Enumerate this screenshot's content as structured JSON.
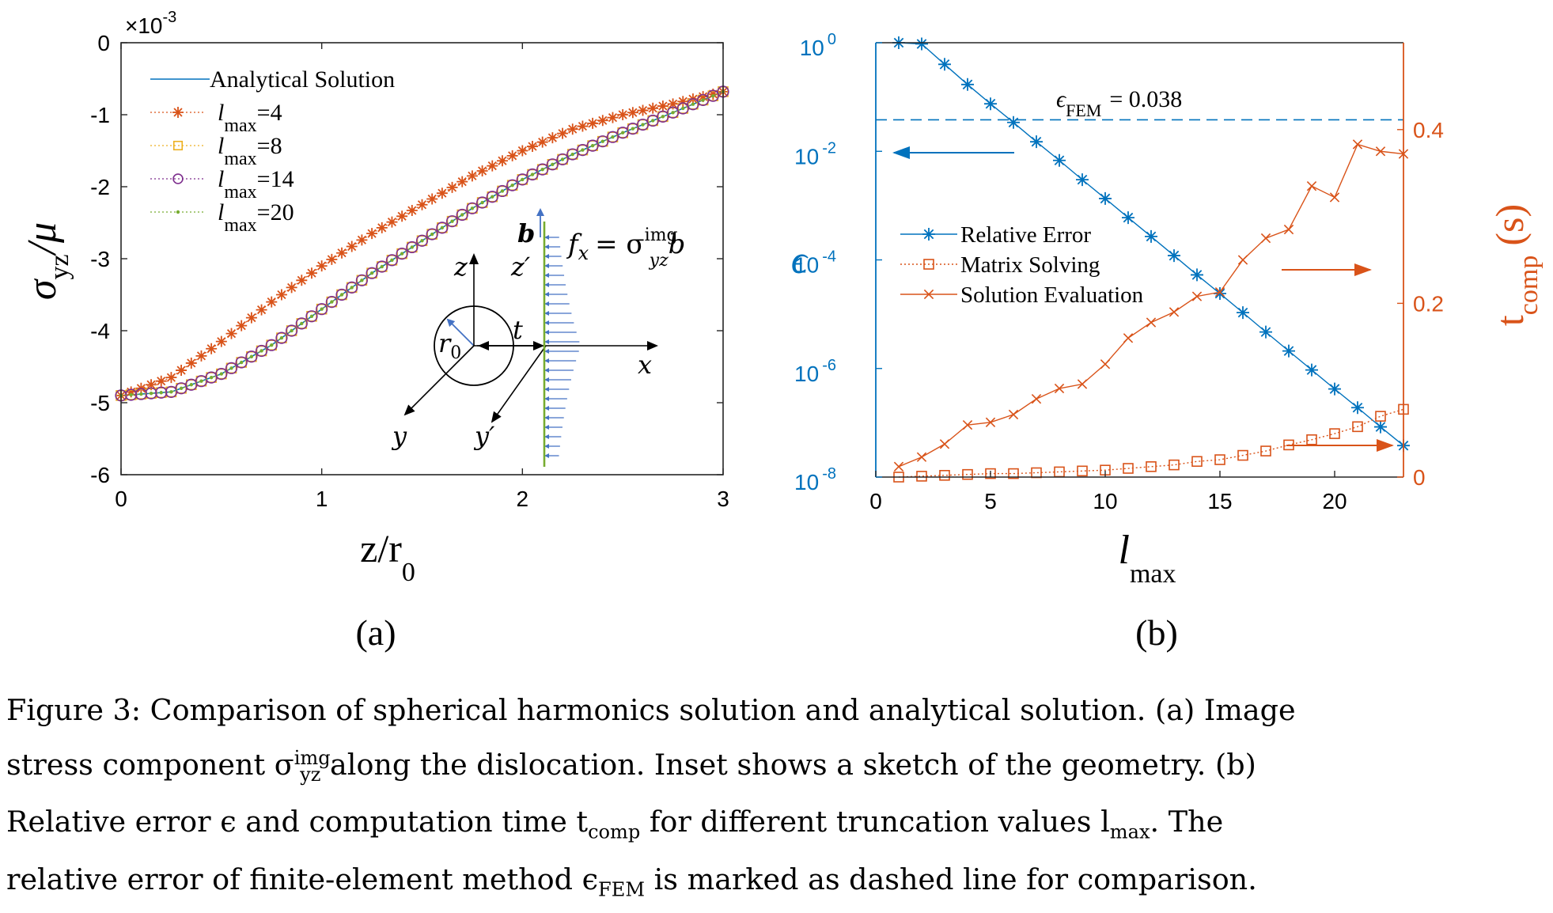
{
  "chart_data": [
    {
      "type": "line",
      "panel_label": "(a)",
      "xlabel_main": "z/r",
      "xlabel_sub": "0",
      "ylabel_main": "σ",
      "ylabel_sub": "yz",
      "ylabel_tail": "/μ",
      "y_exponent": "×10",
      "y_exponent_power": "-3",
      "xlim": [
        0,
        3
      ],
      "ylim": [
        -6,
        0
      ],
      "x_ticks": [
        "0",
        "1",
        "2",
        "3"
      ],
      "y_ticks": [
        "0",
        "-1",
        "-2",
        "-3",
        "-4",
        "-5",
        "-6"
      ],
      "grid": false,
      "legend_position": "top-left",
      "series": [
        {
          "name": "Analytical Solution",
          "color": "#0072BD",
          "marker": "none",
          "x": [
            0,
            0.25,
            0.5,
            0.75,
            1.0,
            1.25,
            1.5,
            1.75,
            2.0,
            2.25,
            2.5,
            2.75,
            3.0
          ],
          "y": [
            -4.9,
            -4.85,
            -4.6,
            -4.2,
            -3.7,
            -3.2,
            -2.75,
            -2.3,
            -1.9,
            -1.55,
            -1.25,
            -0.97,
            -0.68
          ]
        },
        {
          "name": "=4",
          "name_prefix": "l",
          "name_sub": "max",
          "color": "#D95319",
          "marker": "star",
          "x": [
            0,
            0.25,
            0.5,
            0.75,
            1.0,
            1.25,
            1.5,
            1.75,
            2.0,
            2.25,
            2.5,
            2.75,
            3.0
          ],
          "y": [
            -4.9,
            -4.65,
            -4.15,
            -3.6,
            -3.1,
            -2.65,
            -2.25,
            -1.85,
            -1.5,
            -1.2,
            -1.0,
            -0.85,
            -0.68
          ]
        },
        {
          "name": "=8",
          "name_prefix": "l",
          "name_sub": "max",
          "color": "#EDB120",
          "marker": "square",
          "x": [
            0,
            0.25,
            0.5,
            0.75,
            1.0,
            1.25,
            1.5,
            1.75,
            2.0,
            2.25,
            2.5,
            2.75,
            3.0
          ],
          "y": [
            -4.9,
            -4.85,
            -4.6,
            -4.2,
            -3.7,
            -3.2,
            -2.75,
            -2.3,
            -1.9,
            -1.55,
            -1.25,
            -0.97,
            -0.68
          ]
        },
        {
          "name": "=14",
          "name_prefix": "l",
          "name_sub": "max",
          "color": "#7E2F8E",
          "marker": "circle",
          "x": [
            0,
            0.25,
            0.5,
            0.75,
            1.0,
            1.25,
            1.5,
            1.75,
            2.0,
            2.25,
            2.5,
            2.75,
            3.0
          ],
          "y": [
            -4.9,
            -4.85,
            -4.6,
            -4.2,
            -3.7,
            -3.2,
            -2.75,
            -2.3,
            -1.9,
            -1.55,
            -1.25,
            -0.97,
            -0.68
          ]
        },
        {
          "name": "=20",
          "name_prefix": "l",
          "name_sub": "max",
          "color": "#77AC30",
          "marker": "dot",
          "x": [
            0,
            0.25,
            0.5,
            0.75,
            1.0,
            1.25,
            1.5,
            1.75,
            2.0,
            2.25,
            2.5,
            2.75,
            3.0
          ],
          "y": [
            -4.9,
            -4.85,
            -4.6,
            -4.2,
            -3.7,
            -3.2,
            -2.75,
            -2.3,
            -1.9,
            -1.55,
            -1.25,
            -0.97,
            -0.68
          ]
        }
      ],
      "inset": {
        "labels": {
          "z": "z",
          "z_prime": "z′",
          "x": "x",
          "y": "y",
          "y_prime": "y′",
          "r0": "r",
          "r0_sub": "0",
          "t": "t",
          "b": "b"
        },
        "force_label": {
          "f": "f",
          "f_sub": "x",
          "eq": "= σ",
          "sup": "img",
          "sub": "yz",
          "b": "b"
        }
      }
    },
    {
      "type": "line",
      "panel_label": "(b)",
      "xlabel_main": "l",
      "xlabel_sub": "max",
      "ylabel_left": "ϵ",
      "ylabel_right_main": "t",
      "ylabel_right_sub": "comp",
      "ylabel_right_tail": "(s)",
      "xlim": [
        0,
        23
      ],
      "ylim_left_log10": [
        -8,
        0
      ],
      "ylim_right": [
        0,
        0.5
      ],
      "x_ticks": [
        "0",
        "5",
        "10",
        "15",
        "20"
      ],
      "y_ticks_left": [
        {
          "base": "10",
          "exp": "0"
        },
        {
          "base": "10",
          "exp": "-2"
        },
        {
          "base": "10",
          "exp": "-4"
        },
        {
          "base": "10",
          "exp": "-6"
        },
        {
          "base": "10",
          "exp": "-8"
        }
      ],
      "y_ticks_right": [
        "0",
        "0.2",
        "0.4"
      ],
      "left_axis_color": "#0072BD",
      "right_axis_color": "#D95319",
      "legend_position": "center-left",
      "reference_line": {
        "label_symbol": "ϵ",
        "label_sub": "FEM",
        "label_value": "= 0.038",
        "value": 0.038
      },
      "series": [
        {
          "name": "Relative Error",
          "axis": "left",
          "color": "#0072BD",
          "marker": "star",
          "x": [
            1,
            2,
            3,
            4,
            5,
            6,
            7,
            8,
            9,
            10,
            11,
            12,
            13,
            14,
            15,
            16,
            17,
            18,
            19,
            20,
            21,
            22,
            23
          ],
          "y": [
            1.0,
            0.95,
            0.4,
            0.17,
            0.075,
            0.034,
            0.015,
            0.0068,
            0.003,
            0.00135,
            0.0006,
            0.00027,
            0.00012,
            5.3e-05,
            2.4e-05,
            1.07e-05,
            4.7e-06,
            2.1e-06,
            9.4e-07,
            4.2e-07,
            1.9e-07,
            8.4e-08,
            3.8e-08
          ]
        },
        {
          "name": "Matrix Solving",
          "axis": "right",
          "color": "#D95319",
          "marker": "square",
          "x": [
            1,
            2,
            3,
            4,
            5,
            6,
            7,
            8,
            9,
            10,
            11,
            12,
            13,
            14,
            15,
            16,
            17,
            18,
            19,
            20,
            21,
            22,
            23
          ],
          "y": [
            0.0,
            0.001,
            0.002,
            0.003,
            0.004,
            0.004,
            0.005,
            0.006,
            0.007,
            0.008,
            0.01,
            0.012,
            0.014,
            0.018,
            0.02,
            0.025,
            0.03,
            0.037,
            0.043,
            0.05,
            0.058,
            0.07,
            0.078
          ]
        },
        {
          "name": "Solution Evaluation",
          "axis": "right",
          "color": "#D95319",
          "marker": "x",
          "x": [
            1,
            2,
            3,
            4,
            5,
            6,
            7,
            8,
            9,
            10,
            11,
            12,
            13,
            14,
            15,
            16,
            17,
            18,
            19,
            20,
            21,
            22,
            23
          ],
          "y": [
            0.012,
            0.023,
            0.038,
            0.06,
            0.063,
            0.072,
            0.09,
            0.102,
            0.107,
            0.13,
            0.16,
            0.178,
            0.19,
            0.208,
            0.213,
            0.25,
            0.275,
            0.285,
            0.335,
            0.322,
            0.383,
            0.375,
            0.372
          ]
        }
      ]
    }
  ],
  "caption": {
    "line1": "Figure 3: Comparison of spherical harmonics solution and analytical solution. (a) Image",
    "line2_a": "stress component σ",
    "line2_sup": "img",
    "line2_sub": "yz",
    "line2_b": " along the dislocation. Inset shows a sketch of the geometry. (b)",
    "line3_a": "Relative error ϵ and computation time t",
    "line3_sub1": "comp",
    "line3_b": " for different truncation values l",
    "line3_sub2": "max",
    "line3_c": ". The",
    "line4_a": "relative error of finite-element method ϵ",
    "line4_sub": "FEM",
    "line4_b": " is marked as dashed line for comparison."
  }
}
